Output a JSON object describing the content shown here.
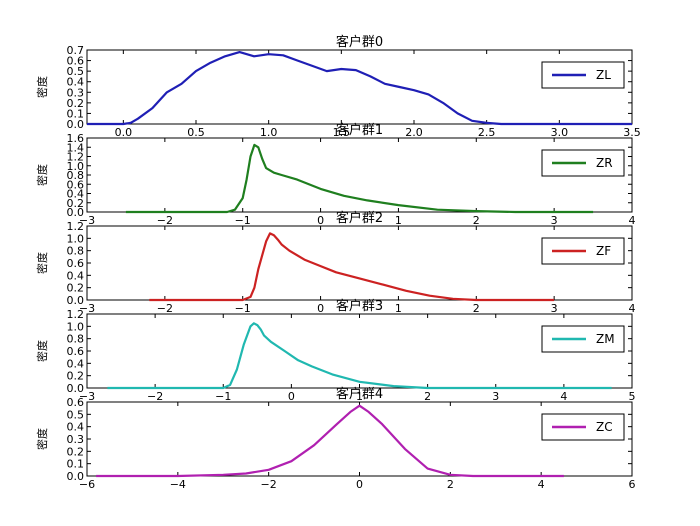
{
  "chart_data": [
    {
      "type": "line",
      "title": "客户群0",
      "ylabel": "密度",
      "xlabel": "",
      "xlim": [
        -0.25,
        3.5
      ],
      "ylim": [
        0,
        0.7
      ],
      "xticks": [
        "0.0",
        "0.5",
        "1.0",
        "1.5",
        "2.0",
        "2.5",
        "3.0",
        "3.5"
      ],
      "xtick_values": [
        0.0,
        0.5,
        1.0,
        1.5,
        2.0,
        2.5,
        3.0,
        3.5
      ],
      "yticks": [
        "0.0",
        "0.1",
        "0.2",
        "0.3",
        "0.4",
        "0.5",
        "0.6",
        "0.7"
      ],
      "ytick_values": [
        0.0,
        0.1,
        0.2,
        0.3,
        0.4,
        0.5,
        0.6,
        0.7
      ],
      "legend_position": "right",
      "series": [
        {
          "name": "ZL",
          "color": "#1f1fb5",
          "x": [
            -0.25,
            0.0,
            0.05,
            0.1,
            0.2,
            0.3,
            0.4,
            0.5,
            0.6,
            0.7,
            0.8,
            0.9,
            1.0,
            1.1,
            1.2,
            1.3,
            1.4,
            1.5,
            1.6,
            1.7,
            1.8,
            1.9,
            2.0,
            2.1,
            2.2,
            2.3,
            2.4,
            2.5,
            2.6,
            3.5
          ],
          "y": [
            0.0,
            0.0,
            0.01,
            0.05,
            0.15,
            0.3,
            0.38,
            0.5,
            0.58,
            0.64,
            0.68,
            0.64,
            0.66,
            0.65,
            0.6,
            0.55,
            0.5,
            0.52,
            0.51,
            0.45,
            0.38,
            0.35,
            0.32,
            0.28,
            0.2,
            0.1,
            0.03,
            0.01,
            0.0,
            0.0
          ]
        }
      ]
    },
    {
      "type": "line",
      "title": "客户群1",
      "ylabel": "密度",
      "xlabel": "",
      "xlim": [
        -3,
        4
      ],
      "ylim": [
        0,
        1.6
      ],
      "xticks": [
        "−3",
        "−2",
        "−1",
        "0",
        "1",
        "2",
        "3",
        "4"
      ],
      "xtick_values": [
        -3,
        -2,
        -1,
        0,
        1,
        2,
        3,
        4
      ],
      "yticks": [
        "0.0",
        "0.2",
        "0.4",
        "0.6",
        "0.8",
        "1.0",
        "1.2",
        "1.4",
        "1.6"
      ],
      "ytick_values": [
        0.0,
        0.2,
        0.4,
        0.6,
        0.8,
        1.0,
        1.2,
        1.4,
        1.6
      ],
      "legend_position": "right",
      "series": [
        {
          "name": "ZR",
          "color": "#1f7f1f",
          "x": [
            -2.5,
            -1.2,
            -1.1,
            -1.0,
            -0.95,
            -0.9,
            -0.85,
            -0.8,
            -0.75,
            -0.7,
            -0.6,
            -0.5,
            -0.3,
            0.0,
            0.3,
            0.6,
            1.0,
            1.5,
            2.0,
            2.5,
            3.0,
            3.5
          ],
          "y": [
            0.0,
            0.0,
            0.05,
            0.3,
            0.7,
            1.2,
            1.45,
            1.4,
            1.15,
            0.95,
            0.85,
            0.8,
            0.7,
            0.5,
            0.35,
            0.25,
            0.15,
            0.05,
            0.02,
            0.0,
            0.0,
            0.0
          ]
        }
      ]
    },
    {
      "type": "line",
      "title": "客户群2",
      "ylabel": "密度",
      "xlabel": "",
      "xlim": [
        -3,
        4
      ],
      "ylim": [
        0,
        1.2
      ],
      "xticks": [
        "−3",
        "−2",
        "−1",
        "0",
        "1",
        "2",
        "3",
        "4"
      ],
      "xtick_values": [
        -3,
        -2,
        -1,
        0,
        1,
        2,
        3,
        4
      ],
      "yticks": [
        "0.0",
        "0.2",
        "0.4",
        "0.6",
        "0.8",
        "1.0",
        "1.2"
      ],
      "ytick_values": [
        0.0,
        0.2,
        0.4,
        0.6,
        0.8,
        1.0,
        1.2
      ],
      "legend_position": "right",
      "series": [
        {
          "name": "ZF",
          "color": "#cc2222",
          "x": [
            -2.2,
            -1.0,
            -0.9,
            -0.85,
            -0.8,
            -0.7,
            -0.65,
            -0.6,
            -0.55,
            -0.5,
            -0.4,
            -0.2,
            0.0,
            0.2,
            0.5,
            0.8,
            1.1,
            1.4,
            1.7,
            2.0,
            2.5,
            3.0
          ],
          "y": [
            0.0,
            0.0,
            0.05,
            0.2,
            0.5,
            0.95,
            1.08,
            1.05,
            0.98,
            0.9,
            0.8,
            0.65,
            0.55,
            0.45,
            0.35,
            0.25,
            0.15,
            0.07,
            0.02,
            0.0,
            0.0,
            0.0
          ]
        }
      ]
    },
    {
      "type": "line",
      "title": "客户群3",
      "ylabel": "密度",
      "xlabel": "",
      "xlim": [
        -3,
        5
      ],
      "ylim": [
        0,
        1.2
      ],
      "xticks": [
        "−3",
        "−2",
        "−1",
        "0",
        "1",
        "2",
        "3",
        "4",
        "5"
      ],
      "xtick_values": [
        -3,
        -2,
        -1,
        0,
        1,
        2,
        3,
        4,
        5
      ],
      "yticks": [
        "0.0",
        "0.2",
        "0.4",
        "0.6",
        "0.8",
        "1.0",
        "1.2"
      ],
      "ytick_values": [
        0.0,
        0.2,
        0.4,
        0.6,
        0.8,
        1.0,
        1.2
      ],
      "legend_position": "right",
      "series": [
        {
          "name": "ZM",
          "color": "#20b8b0",
          "x": [
            -2.7,
            -1.0,
            -0.9,
            -0.8,
            -0.7,
            -0.6,
            -0.55,
            -0.5,
            -0.45,
            -0.4,
            -0.3,
            -0.1,
            0.1,
            0.3,
            0.6,
            1.0,
            1.5,
            2.0,
            3.0,
            4.0,
            4.7
          ],
          "y": [
            0.0,
            0.0,
            0.05,
            0.3,
            0.7,
            1.0,
            1.05,
            1.02,
            0.95,
            0.85,
            0.75,
            0.6,
            0.45,
            0.35,
            0.22,
            0.1,
            0.03,
            0.0,
            0.0,
            0.0,
            0.0
          ]
        }
      ]
    },
    {
      "type": "line",
      "title": "客户群4",
      "ylabel": "密度",
      "xlabel": "",
      "xlim": [
        -6,
        6
      ],
      "ylim": [
        0,
        0.6
      ],
      "xticks": [
        "−6",
        "−4",
        "−2",
        "0",
        "2",
        "4",
        "6"
      ],
      "xtick_values": [
        -6,
        -4,
        -2,
        0,
        2,
        4,
        6
      ],
      "yticks": [
        "0.0",
        "0.1",
        "0.2",
        "0.3",
        "0.4",
        "0.5",
        "0.6"
      ],
      "ytick_values": [
        0.0,
        0.1,
        0.2,
        0.3,
        0.4,
        0.5,
        0.6
      ],
      "legend_position": "right",
      "series": [
        {
          "name": "ZC",
          "color": "#b020b0",
          "x": [
            -5.8,
            -4.0,
            -3.0,
            -2.5,
            -2.0,
            -1.5,
            -1.0,
            -0.5,
            -0.2,
            0.0,
            0.2,
            0.5,
            1.0,
            1.5,
            2.0,
            2.5,
            3.0,
            4.0,
            4.5
          ],
          "y": [
            0.0,
            0.0,
            0.01,
            0.02,
            0.05,
            0.12,
            0.25,
            0.42,
            0.52,
            0.57,
            0.52,
            0.42,
            0.22,
            0.06,
            0.01,
            0.0,
            0.0,
            0.0,
            0.0
          ]
        }
      ]
    }
  ]
}
